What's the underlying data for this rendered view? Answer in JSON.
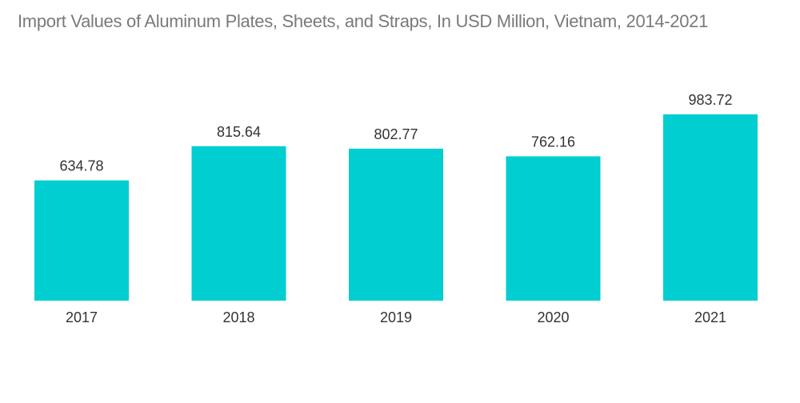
{
  "chart_data": {
    "type": "bar",
    "title": "Import Values of Aluminum Plates, Sheets, and Straps, In USD Million, Vietnam, 2014-2021",
    "categories": [
      "2017",
      "2018",
      "2019",
      "2020",
      "2021"
    ],
    "values": [
      634.78,
      815.64,
      802.77,
      762.16,
      983.72
    ],
    "value_labels": [
      "634.78",
      "815.64",
      "802.77",
      "762.16",
      "983.72"
    ],
    "xlabel": "",
    "ylabel": "",
    "ylim": [
      0,
      1000
    ],
    "grid": false,
    "legend": "none",
    "bar_color": "#00ced1"
  }
}
